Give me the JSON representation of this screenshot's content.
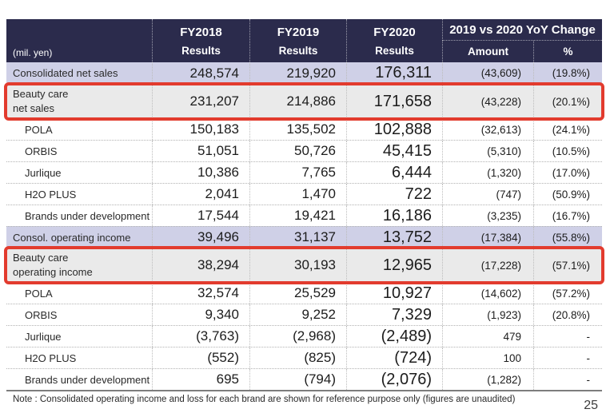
{
  "colors": {
    "header_bg": "#2b2b4c",
    "header_text": "#ffffff",
    "highlight_row_bg": "#cfd0e7",
    "redbox_row_bg": "#eaeaea",
    "red_border": "#e23b2e",
    "body_text": "#1c1c1c"
  },
  "table": {
    "unit_label": "(mil. yen)",
    "columns": [
      {
        "line1": "FY2018",
        "line2": "Results"
      },
      {
        "line1": "FY2019",
        "line2": "Results"
      },
      {
        "line1": "FY2020",
        "line2": "Results"
      }
    ],
    "yoy_group": {
      "label": "2019 vs 2020 YoY Change",
      "amount_label": "Amount",
      "percent_label": "%"
    },
    "rows": [
      {
        "type": "highlight",
        "label": "Consolidated net sales",
        "values": [
          "248,574",
          "219,920",
          "176,311",
          "(43,609)",
          "(19.8%)"
        ]
      },
      {
        "type": "redbox",
        "label": "Beauty care net sales",
        "label_lines": [
          "Beauty care",
          "net sales"
        ],
        "values": [
          "231,207",
          "214,886",
          "171,658",
          "(43,228)",
          "(20.1%)"
        ]
      },
      {
        "type": "brand",
        "label": "POLA",
        "values": [
          "150,183",
          "135,502",
          "102,888",
          "(32,613)",
          "(24.1%)"
        ]
      },
      {
        "type": "brand",
        "label": "ORBIS",
        "values": [
          "51,051",
          "50,726",
          "45,415",
          "(5,310)",
          "(10.5%)"
        ]
      },
      {
        "type": "brand",
        "label": "Jurlique",
        "values": [
          "10,386",
          "7,765",
          "6,444",
          "(1,320)",
          "(17.0%)"
        ]
      },
      {
        "type": "brand",
        "label": "H2O PLUS",
        "values": [
          "2,041",
          "1,470",
          "722",
          "(747)",
          "(50.9%)"
        ]
      },
      {
        "type": "brand",
        "label": "Brands under development",
        "values": [
          "17,544",
          "19,421",
          "16,186",
          "(3,235)",
          "(16.7%)"
        ]
      },
      {
        "type": "highlight",
        "label": "Consol. operating income",
        "values": [
          "39,496",
          "31,137",
          "13,752",
          "(17,384)",
          "(55.8%)"
        ]
      },
      {
        "type": "redbox",
        "label": "Beauty care operating income",
        "label_lines": [
          "Beauty care",
          "operating income"
        ],
        "values": [
          "38,294",
          "30,193",
          "12,965",
          "(17,228)",
          "(57.1%)"
        ]
      },
      {
        "type": "brand",
        "label": "POLA",
        "values": [
          "32,574",
          "25,529",
          "10,927",
          "(14,602)",
          "(57.2%)"
        ]
      },
      {
        "type": "brand",
        "label": "ORBIS",
        "values": [
          "9,340",
          "9,252",
          "7,329",
          "(1,923)",
          "(20.8%)"
        ]
      },
      {
        "type": "brand",
        "label": "Jurlique",
        "values": [
          "(3,763)",
          "(2,968)",
          "(2,489)",
          "479",
          "-"
        ]
      },
      {
        "type": "brand",
        "label": "H2O PLUS",
        "values": [
          "(552)",
          "(825)",
          "(724)",
          "100",
          "-"
        ]
      },
      {
        "type": "brand",
        "label": "Brands under development",
        "values": [
          "695",
          "(794)",
          "(2,076)",
          "(1,282)",
          "-"
        ]
      }
    ]
  },
  "footer": {
    "note": "Note : Consolidated operating income and loss for each brand are shown for reference purpose only (figures are unaudited)",
    "page_number": "25"
  }
}
